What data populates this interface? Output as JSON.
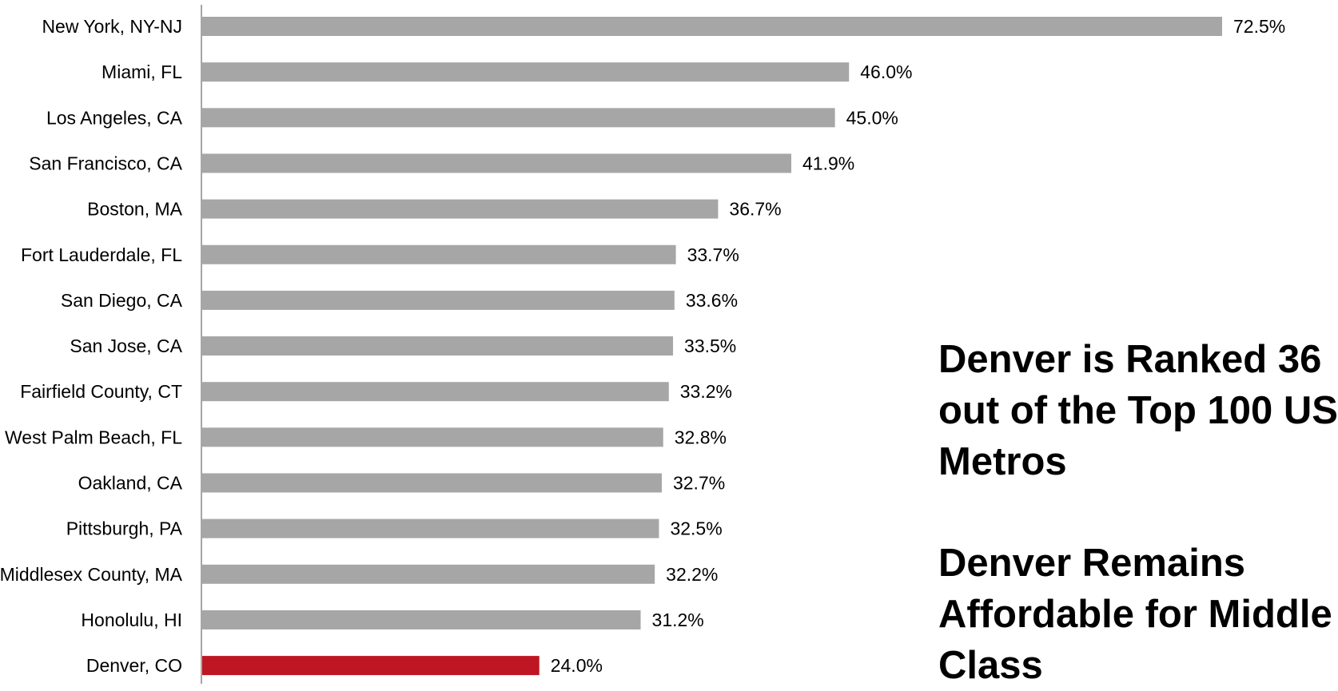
{
  "chart_data": {
    "type": "bar",
    "orientation": "horizontal",
    "categories": [
      "New York, NY-NJ",
      "Miami, FL",
      "Los Angeles, CA",
      "San Francisco, CA",
      "Boston, MA",
      "Fort Lauderdale, FL",
      "San Diego, CA",
      "San Jose, CA",
      "Fairfield County, CT",
      "West Palm Beach, FL",
      "Oakland, CA",
      "Pittsburgh, PA",
      "Middlesex County, MA",
      "Honolulu, HI",
      "Denver, CO"
    ],
    "values": [
      72.5,
      46.0,
      45.0,
      41.9,
      36.7,
      33.7,
      33.6,
      33.5,
      33.2,
      32.8,
      32.7,
      32.5,
      32.2,
      31.2,
      24.0
    ],
    "value_labels": [
      "72.5%",
      "46.0%",
      "45.0%",
      "41.9%",
      "36.7%",
      "33.7%",
      "33.6%",
      "33.5%",
      "33.2%",
      "32.8%",
      "32.7%",
      "32.5%",
      "32.2%",
      "31.2%",
      "24.0%"
    ],
    "highlight_category": "Denver, CO",
    "colors": {
      "bar": "#a6a6a6",
      "highlight": "#be1622",
      "axis": "#a6a6a6"
    },
    "xlim": [
      0,
      72.5
    ],
    "grid": false,
    "legend": "none",
    "title": "",
    "xlabel": "",
    "ylabel": ""
  },
  "annotations": [
    {
      "lines": [
        "Denver is Ranked 36",
        "out of the Top 100 US",
        "Metros"
      ]
    },
    {
      "lines": [
        "Denver Remains",
        "Affordable for Middle",
        "Class"
      ]
    }
  ]
}
